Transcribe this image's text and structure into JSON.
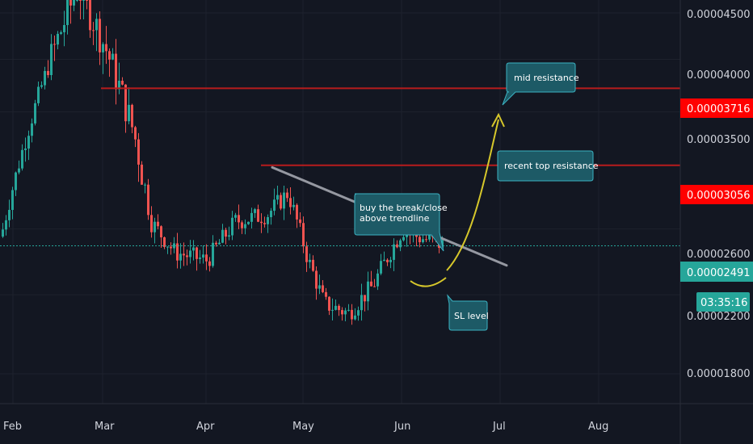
{
  "chart_data": {
    "type": "candlestick",
    "x_axis": {
      "tick_labels": [
        "Feb",
        "Mar",
        "Apr",
        "May",
        "Jun",
        "Jul",
        "Aug"
      ]
    },
    "y_axis": {
      "scale": "log",
      "tick_labels": [
        "0.00004500",
        "0.00004000",
        "0.00003500",
        "0.00002600",
        "0.00002200",
        "0.00001800"
      ],
      "range": [
        1.62e-05,
        5e-05
      ]
    },
    "grid": true,
    "colors": {
      "up": "#26a69a",
      "down": "#ef5350",
      "background": "#131722",
      "level_line": "#b71c1c",
      "trendline": "#9598a1",
      "projection": "#d6c72b",
      "note_fill": "#1d5a66",
      "note_border": "#3bb3c3"
    },
    "candle_summary": [
      {
        "period": "early Feb",
        "low": 2.45e-05,
        "high": 2.65e-05
      },
      {
        "period": "mid Feb peak",
        "low": 4e-05,
        "high": 5e-05
      },
      {
        "period": "early Mar",
        "low": 3.7e-05,
        "high": 4.7e-05
      },
      {
        "period": "late Mar",
        "low": 2.4e-05,
        "high": 2.75e-05
      },
      {
        "period": "early Apr",
        "low": 2.3e-05,
        "high": 2.55e-05
      },
      {
        "period": "late Apr",
        "low": 2.45e-05,
        "high": 3e-05
      },
      {
        "period": "mid May low",
        "low": 2e-05,
        "high": 2.3e-05
      },
      {
        "period": "early Jun",
        "low": 2.4e-05,
        "high": 2.75e-05
      },
      {
        "period": "mid Jun",
        "low": 2.45e-05,
        "high": 2.6e-05
      }
    ],
    "levels": [
      {
        "name": "mid resistance",
        "value": 3.716e-05,
        "label": "0.00003716"
      },
      {
        "name": "recent top resistance",
        "value": 3.056e-05,
        "label": "0.00003056"
      }
    ],
    "last_price": {
      "value": 2.491e-05,
      "label": "0.00002491",
      "countdown": "03:35:16"
    },
    "trendline": {
      "from": [
        "late Apr",
        3.04e-05
      ],
      "to": [
        "late Jun",
        2.37e-05
      ]
    },
    "annotations": [
      "mid resistance",
      "recent top resistance",
      "buy the break/close",
      "above trendline",
      "SL level"
    ]
  }
}
